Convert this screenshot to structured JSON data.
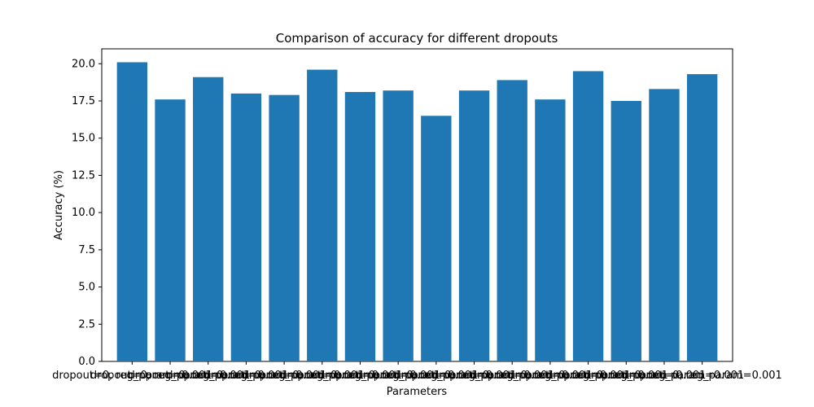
{
  "chart_data": {
    "type": "bar",
    "title": "Comparison of accuracy for different dropouts",
    "xlabel": "Parameters",
    "ylabel": "Accuracy (%)",
    "ylim": [
      0,
      21
    ],
    "yticks": [
      0.0,
      2.5,
      5.0,
      7.5,
      10.0,
      12.5,
      15.0,
      17.5,
      20.0
    ],
    "ytick_labels": [
      "0.0",
      "2.5",
      "5.0",
      "7.5",
      "10.0",
      "12.5",
      "15.0",
      "17.5",
      "20.0"
    ],
    "categories": [
      "dropout=0, reg_param=0.001",
      "dropout=0, reg_param=0.001",
      "dropout=0, reg_param=0.001",
      "dropout=0, reg_param=0.001",
      "dropout=0, reg_param=0.001",
      "dropout=0, reg_param=0.001",
      "dropout=0, reg_param=0.001",
      "dropout=0, reg_param=0.001",
      "dropout=0, reg_param=0.001",
      "dropout=0, reg_param=0.001",
      "dropout=0, reg_param=0.001",
      "dropout=0, reg_param=0.001",
      "dropout=0, reg_param=0.001",
      "dropout=0, reg_param=0.001",
      "dropout=0, reg_param=0.001",
      "dropout=0, reg_param=0.001"
    ],
    "values": [
      20.1,
      17.6,
      19.1,
      18.0,
      17.9,
      19.6,
      18.1,
      18.2,
      16.5,
      18.2,
      18.9,
      17.6,
      19.5,
      17.5,
      18.3,
      19.3
    ],
    "bar_color": "#1f77b4",
    "grid": false,
    "legend": "none"
  }
}
